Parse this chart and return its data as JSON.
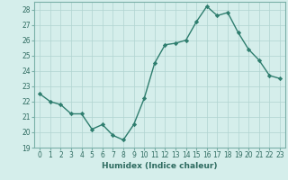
{
  "x": [
    0,
    1,
    2,
    3,
    4,
    5,
    6,
    7,
    8,
    9,
    10,
    11,
    12,
    13,
    14,
    15,
    16,
    17,
    18,
    19,
    20,
    21,
    22,
    23
  ],
  "y": [
    22.5,
    22.0,
    21.8,
    21.2,
    21.2,
    20.2,
    20.5,
    19.8,
    19.5,
    20.5,
    22.2,
    24.5,
    25.7,
    25.8,
    26.0,
    27.2,
    28.2,
    27.6,
    27.8,
    26.5,
    25.4,
    24.7,
    23.7,
    23.5
  ],
  "line_color": "#2e7d6e",
  "marker": "D",
  "markersize": 2.2,
  "linewidth": 1.0,
  "background_color": "#d5eeeb",
  "grid_color": "#b0d4d0",
  "xlabel": "Humidex (Indice chaleur)",
  "xlim": [
    -0.5,
    23.5
  ],
  "ylim": [
    19,
    28.5
  ],
  "yticks": [
    19,
    20,
    21,
    22,
    23,
    24,
    25,
    26,
    27,
    28
  ],
  "xticks": [
    0,
    1,
    2,
    3,
    4,
    5,
    6,
    7,
    8,
    9,
    10,
    11,
    12,
    13,
    14,
    15,
    16,
    17,
    18,
    19,
    20,
    21,
    22,
    23
  ],
  "tick_fontsize": 5.5,
  "xlabel_fontsize": 6.5,
  "tick_color": "#2e6b60",
  "label_color": "#2e6b60",
  "spine_color": "#7ab0a8"
}
